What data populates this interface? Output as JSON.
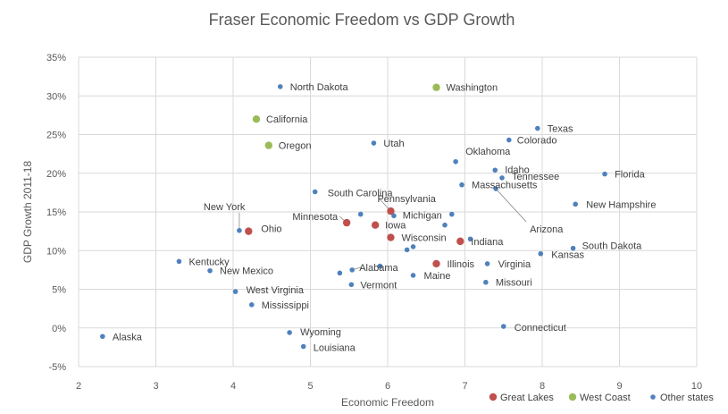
{
  "chart_data": {
    "type": "scatter",
    "title": "Fraser Economic Freedom vs GDP Growth",
    "xlabel": "Economic Freedom",
    "ylabel": "GDP Growth 2011-18",
    "xlim": [
      2,
      10
    ],
    "ylim": [
      -5,
      35
    ],
    "x_ticks": [
      "2",
      "3",
      "4",
      "5",
      "6",
      "7",
      "8",
      "9",
      "10"
    ],
    "y_ticks": [
      "-5%",
      "0%",
      "5%",
      "10%",
      "15%",
      "20%",
      "25%",
      "30%",
      "35%"
    ],
    "grid": true,
    "legend_position": "bottom-right",
    "series": [
      {
        "name": "Great Lakes",
        "color": "#c0504d",
        "points": [
          {
            "label": "Ohio",
            "x": 4.2,
            "y": 12.5
          },
          {
            "label": "Minnesota",
            "x": 5.47,
            "y": 13.6
          },
          {
            "label": "Pennsylvania",
            "x": 6.04,
            "y": 15.1
          },
          {
            "label": "Iowa",
            "x": 5.84,
            "y": 13.3
          },
          {
            "label": "Wisconsin",
            "x": 6.04,
            "y": 11.7
          },
          {
            "label": "Indiana",
            "x": 6.94,
            "y": 11.2
          },
          {
            "label": "Illinois",
            "x": 6.63,
            "y": 8.3
          }
        ]
      },
      {
        "name": "West Coast",
        "color": "#9bbb59",
        "points": [
          {
            "label": "Washington",
            "x": 6.63,
            "y": 31.1
          },
          {
            "label": "California",
            "x": 4.3,
            "y": 27.0
          },
          {
            "label": "Oregon",
            "x": 4.46,
            "y": 23.6
          }
        ]
      },
      {
        "name": "Other states",
        "color": "#4f81bd",
        "points": [
          {
            "label": "North Dakota",
            "x": 4.61,
            "y": 31.2
          },
          {
            "label": "Texas",
            "x": 7.94,
            "y": 25.8
          },
          {
            "label": "Colorado",
            "x": 7.57,
            "y": 24.3
          },
          {
            "label": "Utah",
            "x": 5.82,
            "y": 23.9
          },
          {
            "label": "Oklahoma",
            "x": 6.88,
            "y": 21.5
          },
          {
            "label": "Idaho",
            "x": 7.39,
            "y": 20.4
          },
          {
            "label": "Tennessee",
            "x": 7.48,
            "y": 19.4
          },
          {
            "label": "Florida",
            "x": 8.81,
            "y": 19.9
          },
          {
            "label": "Massachusetts",
            "x": 6.96,
            "y": 18.5
          },
          {
            "label": "South Carolina",
            "x": 5.06,
            "y": 17.6
          },
          {
            "label": "New Hampshire",
            "x": 8.43,
            "y": 16.0
          },
          {
            "label": "Arizona",
            "x": 7.4,
            "y": 18.0
          },
          {
            "label": "Michigan",
            "x": 6.83,
            "y": 14.7
          },
          {
            "label": "New York",
            "x": 4.08,
            "y": 12.6
          },
          {
            "label": "South Dakota",
            "x": 8.4,
            "y": 10.3
          },
          {
            "label": "Kansas",
            "x": 7.98,
            "y": 9.6
          },
          {
            "label": "Kentucky",
            "x": 3.3,
            "y": 8.6
          },
          {
            "label": "New Mexico",
            "x": 3.7,
            "y": 7.4
          },
          {
            "label": "Virginia",
            "x": 7.29,
            "y": 8.3
          },
          {
            "label": "Alabama",
            "x": 5.54,
            "y": 7.5
          },
          {
            "label": "Maine",
            "x": 6.33,
            "y": 6.8
          },
          {
            "label": "Vermont",
            "x": 5.53,
            "y": 5.6
          },
          {
            "label": "Missouri",
            "x": 7.27,
            "y": 5.9
          },
          {
            "label": "West Virginia",
            "x": 4.03,
            "y": 4.7
          },
          {
            "label": "Mississippi",
            "x": 4.24,
            "y": 3.0
          },
          {
            "label": "Connecticut",
            "x": 7.5,
            "y": 0.2
          },
          {
            "label": "Wyoming",
            "x": 4.73,
            "y": -0.6
          },
          {
            "label": "Louisiana",
            "x": 4.91,
            "y": -2.4
          },
          {
            "label": "Alaska",
            "x": 2.31,
            "y": -1.1
          },
          {
            "label": "",
            "x": 5.38,
            "y": 7.1
          },
          {
            "label": "",
            "x": 5.9,
            "y": 8.0
          },
          {
            "label": "",
            "x": 5.65,
            "y": 14.7
          },
          {
            "label": "",
            "x": 6.25,
            "y": 10.1
          },
          {
            "label": "",
            "x": 6.33,
            "y": 10.5
          },
          {
            "label": "",
            "x": 6.74,
            "y": 13.3
          },
          {
            "label": "",
            "x": 7.07,
            "y": 11.5
          },
          {
            "label": "",
            "x": 6.08,
            "y": 14.5
          }
        ]
      }
    ]
  }
}
